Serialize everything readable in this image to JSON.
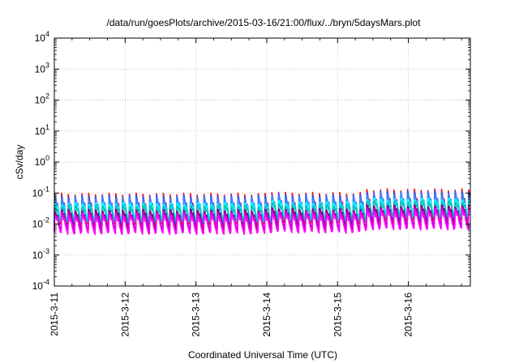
{
  "chart_data": {
    "type": "line",
    "title": "/data/run/goesPlots/archive/2015-03-16/21:00/flux/../bryn/5daysMars.plot",
    "xlabel": "Coordinated Universal Time (UTC)",
    "ylabel": "cSv/day",
    "yscale": "log",
    "ylim": [
      0.0001,
      10000
    ],
    "y_ticks": [
      {
        "base": "10",
        "exp": "-4",
        "value": 0.0001
      },
      {
        "base": "10",
        "exp": "-3",
        "value": 0.001
      },
      {
        "base": "10",
        "exp": "-2",
        "value": 0.01
      },
      {
        "base": "10",
        "exp": "-1",
        "value": 0.1
      },
      {
        "base": "10",
        "exp": "0",
        "value": 1
      },
      {
        "base": "10",
        "exp": "1",
        "value": 10
      },
      {
        "base": "10",
        "exp": "2",
        "value": 100
      },
      {
        "base": "10",
        "exp": "3",
        "value": 1000
      },
      {
        "base": "10",
        "exp": "4",
        "value": 10000
      }
    ],
    "xlim": [
      "2015-03-11",
      "2015-03-16 21:00"
    ],
    "x_ticks": [
      "2015-3-11",
      "2015-3-12",
      "2015-3-13",
      "2015-3-14",
      "2015-3-15",
      "2015-3-16"
    ],
    "grid": true,
    "series_colors": [
      "#ff0000",
      "#ff00ff",
      "#800080",
      "#c000c0",
      "#00c0c0",
      "#00ffff",
      "#2060ff",
      "#4080ff"
    ],
    "sawtooth_period_hours": 2.3,
    "bands": [
      {
        "until": "2015-03-14 00:00",
        "peak": 0.08,
        "trough": 0.005
      },
      {
        "until": "2015-03-14 06:00",
        "peak": 0.095,
        "trough": 0.006
      },
      {
        "until": "2015-03-15 08:00",
        "peak": 0.085,
        "trough": 0.0055
      },
      {
        "until": "2015-03-16 21:00",
        "peak": 0.11,
        "trough": 0.007
      }
    ],
    "series": [
      {
        "color": "#ff0000",
        "peak_scale": 1.15,
        "trough_scale": 1.9
      },
      {
        "color": "#2060ff",
        "peak_scale": 1.0,
        "trough_scale": 2.2
      },
      {
        "color": "#4080ff",
        "peak_scale": 0.85,
        "trough_scale": 2.6
      },
      {
        "color": "#00ffff",
        "peak_scale": 0.55,
        "trough_scale": 2.9
      },
      {
        "color": "#00c0c0",
        "peak_scale": 0.45,
        "trough_scale": 2.4
      },
      {
        "color": "#800080",
        "peak_scale": 0.35,
        "trough_scale": 1.4
      },
      {
        "color": "#c000c0",
        "peak_scale": 0.3,
        "trough_scale": 1.15
      },
      {
        "color": "#ff00ff",
        "peak_scale": 0.25,
        "trough_scale": 1.0
      }
    ]
  }
}
